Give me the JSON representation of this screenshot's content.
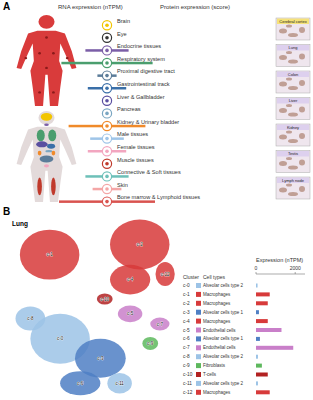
{
  "panel_a": {
    "label": "A",
    "rna_header": "RNA expression (nTPM)",
    "protein_header": "Protein expression (score)",
    "level_lim": [
      0,
      100
    ],
    "tissues": [
      {
        "name": "Brain",
        "color": "#f2c500",
        "level": 0
      },
      {
        "name": "Eye",
        "color": "#333333",
        "level": 0
      },
      {
        "name": "Endocrine tissues",
        "color": "#7b5ea7",
        "level": 45
      },
      {
        "name": "Respiratory system",
        "color": "#4a9e6e",
        "level": 95
      },
      {
        "name": "Proximal digestive tract",
        "color": "#5b7c99",
        "level": 20
      },
      {
        "name": "Gastrointestinal track",
        "color": "#3a6fa8",
        "level": 40
      },
      {
        "name": "Liver & Gallbladder",
        "color": "#5a4fa0",
        "level": 8
      },
      {
        "name": "Pancreas",
        "color": "#7aa6c2",
        "level": 8
      },
      {
        "name": "Kidney & Urinary bladder",
        "color": "#f08a2a",
        "level": 80
      },
      {
        "name": "Male tissues",
        "color": "#9fc5e8",
        "level": 35
      },
      {
        "name": "Female tissues",
        "color": "#f2a6c0",
        "level": 40
      },
      {
        "name": "Muscle tissues",
        "color": "#c0392b",
        "level": 0
      },
      {
        "name": "Connective & Soft tissues",
        "color": "#6dc0b8",
        "level": 45
      },
      {
        "name": "Skin",
        "color": "#f4a6a6",
        "level": 30
      },
      {
        "name": "Bone marrow & Lymphoid tissues",
        "color": "#d9534f",
        "level": 100
      }
    ],
    "images": [
      "Cerebral cortex",
      "Lung",
      "Colon",
      "Liver",
      "Kidney",
      "Testis",
      "Lymph node"
    ]
  },
  "panel_b": {
    "label": "B",
    "umap": {
      "title": "Lung",
      "xlim": [
        -10,
        10
      ],
      "ylim": [
        -10,
        10
      ],
      "clusters": [
        {
          "cluster": 1,
          "x": -4.9,
          "y": 5.5,
          "rx": 3.4,
          "ry": 2.7
        },
        {
          "cluster": 2,
          "x": 5.4,
          "y": 6.6,
          "rx": 3.4,
          "ry": 2.7
        },
        {
          "cluster": 0,
          "x": -3.7,
          "y": -3.6,
          "rx": 3.4,
          "ry": 2.7
        },
        {
          "cluster": 3,
          "x": 0.9,
          "y": -5.7,
          "rx": 2.9,
          "ry": 2.1
        },
        {
          "cluster": 4,
          "x": 4.3,
          "y": 2.8,
          "rx": 2.3,
          "ry": 1.6
        },
        {
          "cluster": 6,
          "x": -1.4,
          "y": -8.4,
          "rx": 2.3,
          "ry": 1.3
        },
        {
          "cluster": 8,
          "x": -7.1,
          "y": -1.4,
          "rx": 1.7,
          "ry": 1.3
        },
        {
          "cluster": 5,
          "x": 4.3,
          "y": -0.9,
          "rx": 1.4,
          "ry": 0.9
        },
        {
          "cluster": 11,
          "x": 3.1,
          "y": -8.4,
          "rx": 1.4,
          "ry": 1.1
        },
        {
          "cluster": 12,
          "x": 8.3,
          "y": 3.4,
          "rx": 1.1,
          "ry": 1.3
        },
        {
          "cluster": 7,
          "x": 7.7,
          "y": -2.0,
          "rx": 1.1,
          "ry": 0.7
        },
        {
          "cluster": 9,
          "x": 6.6,
          "y": -4.1,
          "rx": 0.9,
          "ry": 0.7
        },
        {
          "cluster": 10,
          "x": 1.4,
          "y": 0.7,
          "rx": 0.9,
          "ry": 0.6
        }
      ]
    }
  },
  "chart_data": {
    "type": "bar",
    "orientation": "horizontal",
    "legend_header": [
      "Cluster",
      "Cell types"
    ],
    "x_label": "Expression (nTPM)",
    "categories": [
      "c-0",
      "c-1",
      "c-2",
      "c-3",
      "c-4",
      "c-5",
      "c-6",
      "c-7",
      "c-8",
      "c-9",
      "c-10",
      "c-11",
      "c-12"
    ],
    "cell_types": [
      "Alveolar cells type 2",
      "Macrophages",
      "Macrophages",
      "Alveolar cells type 1",
      "Macrophages",
      "Endothelial cells",
      "Alveolar cells type 1",
      "Endothelial cells",
      "Alveolar cells type 2",
      "Fibroblasts",
      "T-cells",
      "Alveolar cells type 2",
      "Macrophages"
    ],
    "values": [
      80,
      700,
      600,
      150,
      600,
      1300,
      200,
      1900,
      100,
      300,
      600,
      100,
      700
    ],
    "colors": [
      "#9cc3e6",
      "#d73a3a",
      "#d73a3a",
      "#4f7fc4",
      "#d73a3a",
      "#c97fc9",
      "#4f7fc4",
      "#c97fc9",
      "#9cc3e6",
      "#5db85d",
      "#b22222",
      "#9cc3e6",
      "#d73a3a"
    ],
    "xlim": [
      0,
      2500
    ],
    "xticks": [
      0,
      2000
    ]
  }
}
